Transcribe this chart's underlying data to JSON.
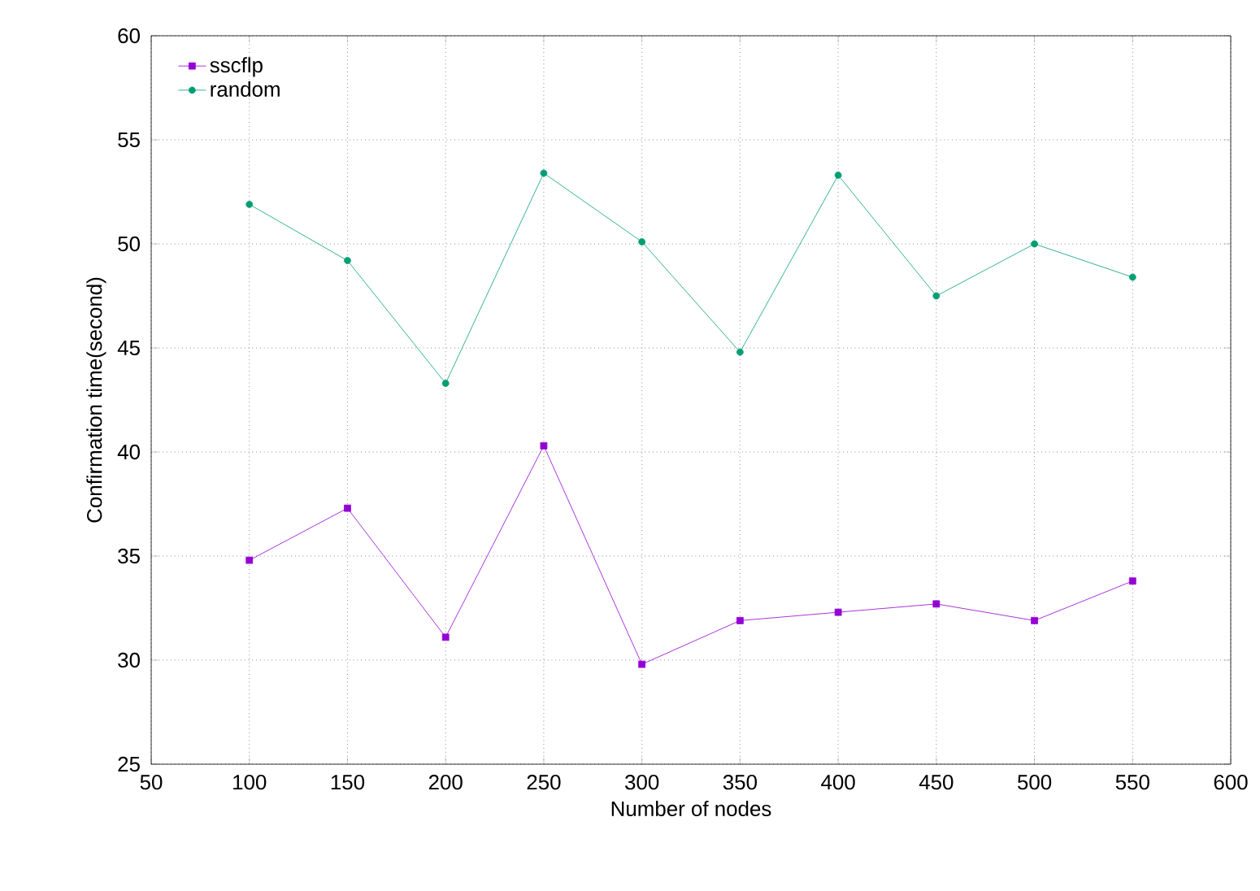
{
  "chart_data": {
    "type": "line",
    "xlabel": "Number of nodes",
    "ylabel": "Confirmation time(second)",
    "x": [
      100,
      150,
      200,
      250,
      300,
      350,
      400,
      450,
      500,
      550
    ],
    "series": [
      {
        "name": "sscflp",
        "color": "#9400d3",
        "marker": "square",
        "values": [
          34.8,
          37.3,
          31.1,
          40.3,
          29.8,
          31.9,
          32.3,
          32.7,
          31.9,
          33.8
        ]
      },
      {
        "name": "random",
        "color": "#009e73",
        "marker": "circle",
        "values": [
          51.9,
          49.2,
          43.3,
          53.4,
          50.1,
          44.8,
          53.3,
          47.5,
          50.0,
          48.4
        ]
      }
    ],
    "xlim": [
      50,
      600
    ],
    "xticks": [
      50,
      100,
      150,
      200,
      250,
      300,
      350,
      400,
      450,
      500,
      550,
      600
    ],
    "ylim": [
      25,
      60
    ],
    "yticks": [
      25,
      30,
      35,
      40,
      45,
      50,
      55,
      60
    ],
    "grid": true,
    "legend": "top left",
    "line_style": "solid"
  }
}
